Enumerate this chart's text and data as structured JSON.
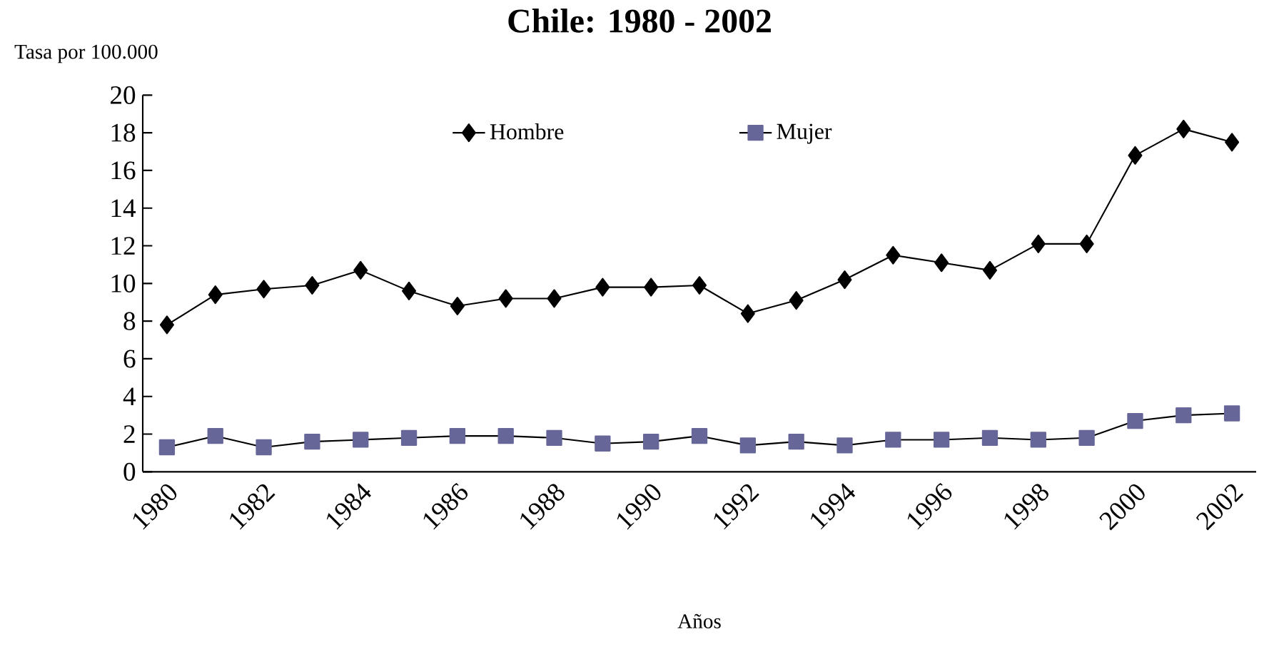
{
  "chart_data": {
    "type": "line",
    "title": "Chile: 1980 - 2002",
    "ylabel": "Tasa por 100.000",
    "xlabel": "Años",
    "categories": [
      "1980",
      null,
      "1982",
      null,
      "1984",
      null,
      "1986",
      null,
      "1988",
      null,
      "1990",
      null,
      "1992",
      null,
      "1994",
      null,
      "1996",
      null,
      "1998",
      null,
      "2000",
      null,
      "2002"
    ],
    "series": [
      {
        "name": "Hombre",
        "color": "#000000",
        "marker": "diamond",
        "values": [
          7.8,
          9.4,
          9.7,
          9.9,
          10.7,
          9.6,
          8.8,
          9.2,
          9.2,
          9.8,
          9.8,
          9.9,
          8.4,
          9.1,
          10.2,
          11.5,
          11.1,
          10.7,
          12.1,
          12.1,
          16.8,
          18.2,
          17.5
        ]
      },
      {
        "name": "Mujer",
        "color": "#666699",
        "marker": "square",
        "values": [
          1.3,
          1.9,
          1.3,
          1.6,
          1.7,
          1.8,
          1.9,
          1.9,
          1.8,
          1.5,
          1.6,
          1.9,
          1.4,
          1.6,
          1.4,
          1.7,
          1.7,
          1.8,
          1.7,
          1.8,
          2.7,
          3.0,
          3.1
        ]
      }
    ],
    "ylim": [
      0,
      20
    ],
    "yticks": [
      0,
      2,
      4,
      6,
      8,
      10,
      12,
      14,
      16,
      18,
      20
    ],
    "grid": false,
    "legend": "top",
    "line_style": "solid"
  }
}
